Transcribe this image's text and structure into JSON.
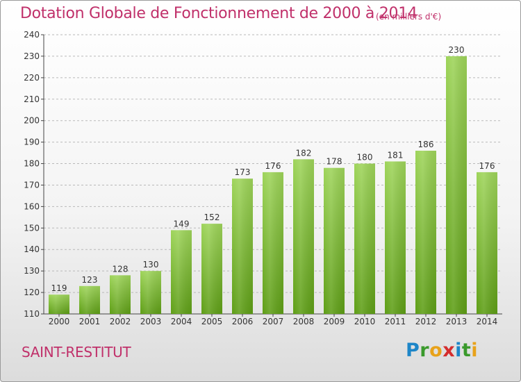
{
  "header": {
    "title": "Dotation Globale de Fonctionnement de 2000 à 2014",
    "subtitle": "(en milliers d'€)"
  },
  "footer": {
    "commune": "SAINT-RESTITUT",
    "brand": "Proxiti",
    "brand_letters": [
      "P",
      "r",
      "o",
      "x",
      "i",
      "t",
      "i"
    ]
  },
  "colors": {
    "title": "#c0306a",
    "bar_top": "#9ed45a",
    "bar_bottom": "#5e9e16",
    "grid": "#b9b9b9",
    "axis": "#444444"
  },
  "chart_data": {
    "type": "bar",
    "title": "Dotation Globale de Fonctionnement de 2000 à 2014",
    "subtitle": "(en milliers d'€)",
    "xlabel": "",
    "ylabel": "",
    "categories": [
      "2000",
      "2001",
      "2002",
      "2003",
      "2004",
      "2005",
      "2006",
      "2007",
      "2008",
      "2009",
      "2010",
      "2011",
      "2012",
      "2013",
      "2014"
    ],
    "values": [
      119,
      123,
      128,
      130,
      149,
      152,
      173,
      176,
      182,
      178,
      180,
      181,
      186,
      230,
      176
    ],
    "ylim": [
      110,
      240
    ],
    "yticks": [
      110,
      120,
      130,
      140,
      150,
      160,
      170,
      180,
      190,
      200,
      210,
      220,
      230,
      240
    ],
    "grid": "horizontal dashed",
    "legend": "none"
  }
}
